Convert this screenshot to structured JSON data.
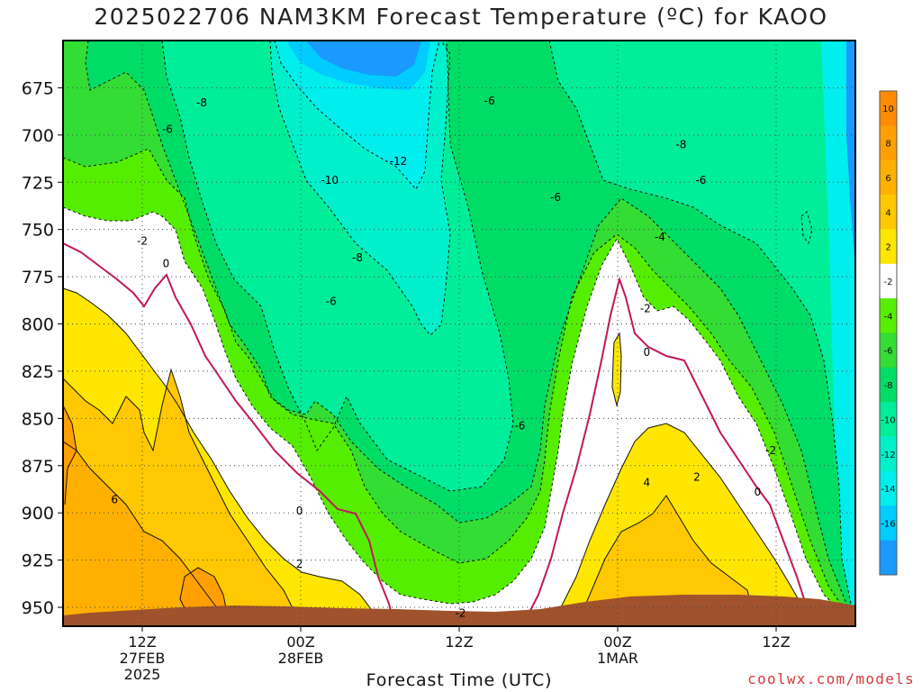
{
  "title": "2025022706 NAM3KM Forecast Temperature (ºC) for KAOO",
  "credit": "coolwx.com/models",
  "colors": {
    "ground": "#a0522d",
    "freezing_line": "#c2185b",
    "contour_line": "#111111",
    "grid": "#444444"
  },
  "chart_data": {
    "type": "heatmap",
    "title": "2025022706 NAM3KM Forecast Temperature (ºC) for KAOO",
    "xlabel": "Forecast Time (UTC)",
    "ylabel": "",
    "x_ticks": [
      {
        "hours": 6,
        "lines": [
          "12Z",
          "27FEB",
          "2025"
        ]
      },
      {
        "hours": 18,
        "lines": [
          "00Z",
          "28FEB"
        ]
      },
      {
        "hours": 30,
        "lines": [
          "12Z"
        ]
      },
      {
        "hours": 42,
        "lines": [
          "00Z",
          "1MAR"
        ]
      },
      {
        "hours": 54,
        "lines": [
          "12Z"
        ]
      }
    ],
    "xlim_hours": [
      0,
      60
    ],
    "y_ticks": [
      675,
      700,
      725,
      750,
      775,
      800,
      825,
      850,
      875,
      900,
      925,
      950
    ],
    "ylim": [
      650,
      960
    ],
    "grid": true,
    "colorbar": {
      "position": "right",
      "bins": [
        {
          "lo": 10,
          "hi": 12,
          "color": "#ff8c00"
        },
        {
          "lo": 8,
          "hi": 10,
          "color": "#ff9f00"
        },
        {
          "lo": 6,
          "hi": 8,
          "color": "#ffb000"
        },
        {
          "lo": 4,
          "hi": 6,
          "color": "#ffc800"
        },
        {
          "lo": 2,
          "hi": 4,
          "color": "#ffe600"
        },
        {
          "lo": -2,
          "hi": 2,
          "color": "#ffffff"
        },
        {
          "lo": -4,
          "hi": -2,
          "color": "#55ee00"
        },
        {
          "lo": -6,
          "hi": -4,
          "color": "#33dd33"
        },
        {
          "lo": -8,
          "hi": -6,
          "color": "#00dd66"
        },
        {
          "lo": -10,
          "hi": -8,
          "color": "#00ee99"
        },
        {
          "lo": -12,
          "hi": -10,
          "color": "#00f0cc"
        },
        {
          "lo": -14,
          "hi": -12,
          "color": "#00eeee"
        },
        {
          "lo": -16,
          "hi": -14,
          "color": "#00ccff"
        },
        {
          "lo": -18,
          "hi": -16,
          "color": "#1a99ff"
        }
      ],
      "tick_labels": [
        "10",
        "8",
        "6",
        "4",
        "2",
        "-2",
        "-4",
        "-6",
        "-8",
        "-10",
        "-12",
        "-14",
        "-16"
      ]
    },
    "contour_labels": [
      {
        "text": "-8",
        "hours": 10.5,
        "level": 683
      },
      {
        "text": "-6",
        "hours": 7.9,
        "level": 697
      },
      {
        "text": "-12",
        "hours": 25.4,
        "level": 714
      },
      {
        "text": "-10",
        "hours": 20.2,
        "level": 724
      },
      {
        "text": "-6",
        "hours": 32.3,
        "level": 682
      },
      {
        "text": "-6",
        "hours": 37.3,
        "level": 733
      },
      {
        "text": "-8",
        "hours": 46.8,
        "level": 705
      },
      {
        "text": "-6",
        "hours": 48.3,
        "level": 724
      },
      {
        "text": "-2",
        "hours": 6.0,
        "level": 756
      },
      {
        "text": "0",
        "hours": 7.8,
        "level": 768
      },
      {
        "text": "-8",
        "hours": 22.3,
        "level": 765
      },
      {
        "text": "-6",
        "hours": 20.3,
        "level": 788
      },
      {
        "text": "-4",
        "hours": 45.2,
        "level": 754
      },
      {
        "text": "-2",
        "hours": 44.1,
        "level": 792
      },
      {
        "text": "0",
        "hours": 44.2,
        "level": 815
      },
      {
        "text": "-6",
        "hours": 34.6,
        "level": 854
      },
      {
        "text": "-2",
        "hours": 53.6,
        "level": 867
      },
      {
        "text": "2",
        "hours": 48.0,
        "level": 881
      },
      {
        "text": "4",
        "hours": 44.2,
        "level": 884
      },
      {
        "text": "0",
        "hours": 52.6,
        "level": 889
      },
      {
        "text": "6",
        "hours": 3.9,
        "level": 893
      },
      {
        "text": "0",
        "hours": 17.9,
        "level": 899
      },
      {
        "text": "2",
        "hours": 17.9,
        "level": 927
      },
      {
        "text": "-2",
        "hours": 30.1,
        "level": 953
      }
    ]
  }
}
